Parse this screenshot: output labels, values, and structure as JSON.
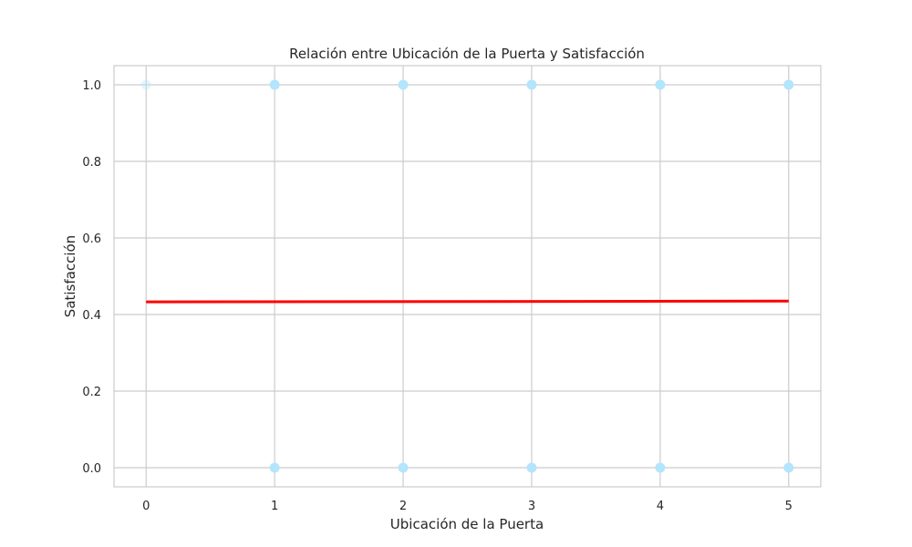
{
  "chart_data": {
    "type": "scatter",
    "title": "Relación entre Ubicación de la Puerta y Satisfacción",
    "xlabel": "Ubicación de la Puerta",
    "ylabel": "Satisfacción",
    "xlim": [
      -0.25,
      5.25
    ],
    "ylim": [
      -0.05,
      1.05
    ],
    "xticks": [
      0,
      1,
      2,
      3,
      4,
      5
    ],
    "yticks": [
      0.0,
      0.2,
      0.4,
      0.6,
      0.8,
      1.0
    ],
    "xtick_labels": [
      "0",
      "1",
      "2",
      "3",
      "4",
      "5"
    ],
    "ytick_labels": [
      "0.0",
      "0.2",
      "0.4",
      "0.6",
      "0.8",
      "1.0"
    ],
    "grid": true,
    "points": [
      {
        "x": 0,
        "y": 1
      },
      {
        "x": 1,
        "y": 1
      },
      {
        "x": 2,
        "y": 1
      },
      {
        "x": 3,
        "y": 1
      },
      {
        "x": 4,
        "y": 1
      },
      {
        "x": 5,
        "y": 1
      },
      {
        "x": 1,
        "y": 0
      },
      {
        "x": 2,
        "y": 0
      },
      {
        "x": 3,
        "y": 0
      },
      {
        "x": 4,
        "y": 0
      },
      {
        "x": 5,
        "y": 0
      }
    ],
    "trend_line": {
      "x": [
        0,
        5
      ],
      "y": [
        0.433,
        0.435
      ]
    },
    "colors": {
      "points": "#b3e5fc",
      "trend_line": "#ff0000",
      "grid": "#cccccc",
      "frame": "#cccccc"
    }
  }
}
